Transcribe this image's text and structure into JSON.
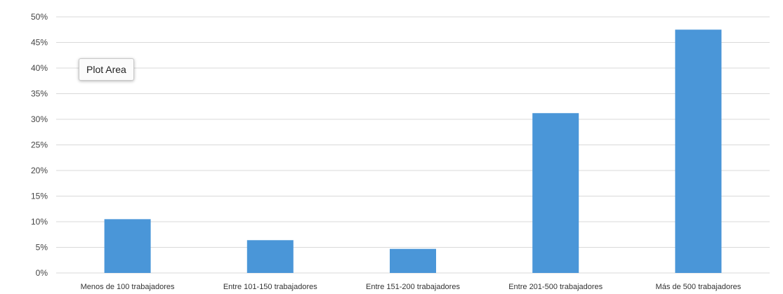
{
  "chart_data": {
    "type": "bar",
    "categories": [
      "Menos de 100 trabajadores",
      "Entre 101-150 trabajadores",
      "Entre 151-200 trabajadores",
      "Entre 201-500 trabajadores",
      "Más de 500 trabajadores"
    ],
    "values": [
      10.5,
      6.4,
      4.7,
      31.2,
      47.5
    ],
    "ylim": [
      0,
      50
    ],
    "yticks": [
      "0%",
      "5%",
      "10%",
      "15%",
      "20%",
      "25%",
      "30%",
      "35%",
      "40%",
      "45%",
      "50%"
    ],
    "grid": true,
    "bar_color": "#4a96d8"
  },
  "tooltip": {
    "label": "Plot Area"
  }
}
